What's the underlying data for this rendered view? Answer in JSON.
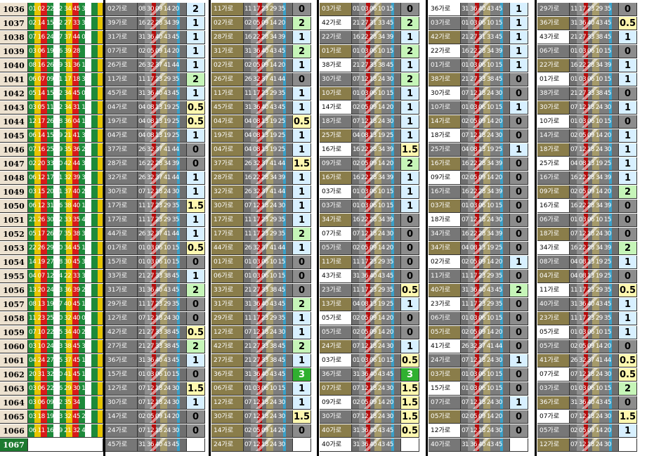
{
  "round_label_last": "1067",
  "rows": [
    {
      "round": "1036",
      "lead": "01 02 22 32 34 45 39",
      "groups": [
        [
          "02가로",
          "08 30 09 14 20",
          "2",
          "hi"
        ],
        [
          "11가로",
          "11 17 23 29 35",
          "0",
          "zero"
        ],
        [
          "03가로",
          "01 03 06 10 15",
          "0",
          "zero"
        ],
        [
          "36가로",
          "31 36 40 43 45",
          "1",
          "hi"
        ],
        [
          "29가로",
          "11 17 23 29 35",
          "0",
          "zero"
        ]
      ]
    },
    {
      "round": "1037",
      "lead": "02 14 15 22 27 33 31",
      "groups": [
        [
          "39가로",
          "16 22 28 34 39",
          "1",
          "hi"
        ],
        [
          "02가로",
          "02 05 09 14 20",
          "2",
          "two"
        ],
        [
          "42가로",
          "21 27 31 33 45",
          "2",
          "two"
        ],
        [
          "03가로",
          "01 03 06 10 15",
          "1",
          "hi"
        ],
        [
          "36가로",
          "31 36 40 43 45",
          "0.5",
          "half"
        ]
      ]
    },
    {
      "round": "1038",
      "lead": "07 16 24 27 37 44 02",
      "groups": [
        [
          "31가로",
          "31 36 40 43 45",
          "1",
          "hi"
        ],
        [
          "28가로",
          "16 22 28 34 39",
          "1",
          "hi"
        ],
        [
          "22가로",
          "16 22 28 34 39",
          "1",
          "hi"
        ],
        [
          "42가로",
          "21 27 31 33 45",
          "1",
          "hi"
        ],
        [
          "43가로",
          "21 27 33 38 45",
          "1",
          "hi"
        ]
      ]
    },
    {
      "round": "1039",
      "lead": "03 06 19 36 39 28",
      "groups": [
        [
          "07가로",
          "02 05 09 14 20",
          "1",
          "hi"
        ],
        [
          "31가로",
          "31 36 40 43 45",
          "2",
          "two"
        ],
        [
          "01가로",
          "01 03 06 10 15",
          "2",
          "two"
        ],
        [
          "22가로",
          "16 22 28 34 39",
          "1",
          "hi"
        ],
        [
          "06가로",
          "01 03 06 10 15",
          "0",
          "zero"
        ]
      ]
    },
    {
      "round": "1040",
      "lead": "08 16 26 29 31 36 11",
      "groups": [
        [
          "26가로",
          "26 32 37 41 44",
          "1",
          "hi"
        ],
        [
          "02가로",
          "02 05 09 14 20",
          "1",
          "hi"
        ],
        [
          "38가로",
          "21 27 33 38 45",
          "1",
          "hi"
        ],
        [
          "01가로",
          "01 03 06 10 15",
          "1",
          "hi"
        ],
        [
          "22가로",
          "16 22 28 34 39",
          "1",
          "hi"
        ]
      ]
    },
    {
      "round": "1041",
      "lead": "06 07 09 11 17 18 30",
      "groups": [
        [
          "11가로",
          "11 17 23 29 35",
          "2",
          "two"
        ],
        [
          "26가로",
          "26 32 37 41 44",
          "0",
          "zero"
        ],
        [
          "30가로",
          "07 12 18 24 30",
          "2",
          "two"
        ],
        [
          "38가로",
          "21 27 33 38 45",
          "0",
          "zero"
        ],
        [
          "01가로",
          "01 03 06 10 15",
          "1",
          "hi"
        ]
      ]
    },
    {
      "round": "1042",
      "lead": "05 14 15 22 34 45 04",
      "groups": [
        [
          "45가로",
          "31 36 40 43 45",
          "1",
          "hi"
        ],
        [
          "11가로",
          "11 17 23 29 35",
          "1",
          "hi"
        ],
        [
          "10가로",
          "01 03 06 10 15",
          "1",
          "hi"
        ],
        [
          "30가로",
          "07 12 18 24 30",
          "0",
          "zero"
        ],
        [
          "38가로",
          "21 27 33 38 45",
          "0",
          "zero"
        ]
      ]
    },
    {
      "round": "1043",
      "lead": "03 05 11 22 34 31 19",
      "groups": [
        [
          "04가로",
          "04 08 13 19 25",
          "0.5",
          "half"
        ],
        [
          "45가로",
          "31 36 40 43 45",
          "1",
          "hi"
        ],
        [
          "14가로",
          "02 05 09 14 20",
          "1",
          "hi"
        ],
        [
          "10가로",
          "01 03 06 10 15",
          "1",
          "hi"
        ],
        [
          "30가로",
          "07 12 18 24 30",
          "1",
          "hi"
        ]
      ]
    },
    {
      "round": "1044",
      "lead": "12 17 26 28 36 04 18",
      "groups": [
        [
          "19가로",
          "04 08 13 19 25",
          "0.5",
          "half"
        ],
        [
          "04가로",
          "04 08 13 19 25",
          "0.5",
          "half"
        ],
        [
          "18가로",
          "07 12 18 24 30",
          "1",
          "hi"
        ],
        [
          "14가로",
          "02 05 09 14 20",
          "0",
          "zero"
        ],
        [
          "10가로",
          "01 03 06 10 15",
          "0",
          "zero"
        ]
      ]
    },
    {
      "round": "1045",
      "lead": "06 14 15 19 21 41 37",
      "groups": [
        [
          "04가로",
          "04 08 13 19 25",
          "1",
          "hi"
        ],
        [
          "19가로",
          "04 08 13 19 25",
          "1",
          "hi"
        ],
        [
          "25가로",
          "04 08 13 19 25",
          "1",
          "hi"
        ],
        [
          "18가로",
          "07 12 18 24 30",
          "0",
          "zero"
        ],
        [
          "14가로",
          "02 05 09 14 20",
          "1",
          "hi"
        ]
      ]
    },
    {
      "round": "1046",
      "lead": "07 16 25 29 35 36 28",
      "groups": [
        [
          "37가로",
          "26 32 37 41 44",
          "0",
          "zero"
        ],
        [
          "04가로",
          "04 08 13 19 25",
          "1",
          "hi"
        ],
        [
          "16가로",
          "16 22 28 34 39",
          "1.5",
          "half"
        ],
        [
          "25가로",
          "04 08 13 19 25",
          "1",
          "hi"
        ],
        [
          "18가로",
          "07 12 18 24 30",
          "1",
          "hi"
        ]
      ]
    },
    {
      "round": "1047",
      "lead": "02 20 33 40 42 44 32",
      "groups": [
        [
          "28가로",
          "16 22 28 34 39",
          "0",
          "zero"
        ],
        [
          "37가로",
          "26 32 37 41 44",
          "1.5",
          "half"
        ],
        [
          "09가로",
          "02 05 09 14 20",
          "2",
          "two"
        ],
        [
          "16가로",
          "16 22 28 34 39",
          "0",
          "zero"
        ],
        [
          "25가로",
          "04 08 13 19 25",
          "1",
          "hi"
        ]
      ]
    },
    {
      "round": "1048",
      "lead": "06 12 17 21 32 39 30",
      "groups": [
        [
          "32가로",
          "26 32 37 41 44",
          "1",
          "hi"
        ],
        [
          "28가로",
          "16 22 28 34 39",
          "1",
          "hi"
        ],
        [
          "16가로",
          "16 22 28 34 39",
          "1",
          "hi"
        ],
        [
          "09가로",
          "02 05 09 14 20",
          "0",
          "zero"
        ],
        [
          "16가로",
          "16 22 28 34 39",
          "1",
          "hi"
        ]
      ]
    },
    {
      "round": "1049",
      "lead": "03 15 20 21 37 40 27",
      "groups": [
        [
          "30가로",
          "07 12 18 24 30",
          "1",
          "hi"
        ],
        [
          "32가로",
          "26 32 37 41 44",
          "1",
          "hi"
        ],
        [
          "03가로",
          "01 03 06 10 15",
          "1",
          "hi"
        ],
        [
          "16가로",
          "16 22 28 34 39",
          "0",
          "zero"
        ],
        [
          "09가로",
          "02 05 09 14 20",
          "2",
          "two"
        ]
      ]
    },
    {
      "round": "1050",
      "lead": "06 12 31 36 38 40 17",
      "groups": [
        [
          "17가로",
          "11 17 23 29 35",
          "1.5",
          "half"
        ],
        [
          "30가로",
          "07 12 18 24 30",
          "1",
          "hi"
        ],
        [
          "03가로",
          "01 03 06 10 15",
          "1",
          "hi"
        ],
        [
          "03가로",
          "01 03 06 10 15",
          "0",
          "zero"
        ],
        [
          "16가로",
          "16 22 28 34 39",
          "0",
          "zero"
        ]
      ]
    },
    {
      "round": "1051",
      "lead": "21 26 30 32 33 35 44",
      "groups": [
        [
          "17가로",
          "11 17 23 29 35",
          "1",
          "hi"
        ],
        [
          "17가로",
          "11 17 23 29 35",
          "1",
          "hi"
        ],
        [
          "34가로",
          "16 22 28 34 39",
          "0",
          "zero"
        ],
        [
          "18가로",
          "07 12 18 24 30",
          "0",
          "zero"
        ],
        [
          "06가로",
          "01 03 06 10 15",
          "0",
          "zero"
        ]
      ]
    },
    {
      "round": "1052",
      "lead": "05 17 26 27 35 38 31",
      "groups": [
        [
          "44가로",
          "26 32 37 41 44",
          "1",
          "hi"
        ],
        [
          "17가로",
          "11 17 23 29 35",
          "2",
          "two"
        ],
        [
          "07가로",
          "07 12 18 24 30",
          "0",
          "zero"
        ],
        [
          "34가로",
          "16 22 28 34 39",
          "0",
          "zero"
        ],
        [
          "18가로",
          "07 12 18 24 30",
          "0",
          "zero"
        ]
      ]
    },
    {
      "round": "1053",
      "lead": "22 26 29 30 34 45 15",
      "groups": [
        [
          "01가로",
          "01 03 06 10 15",
          "0.5",
          "half"
        ],
        [
          "44가로",
          "26 32 37 41 44",
          "1",
          "hi"
        ],
        [
          "05가로",
          "02 05 09 14 20",
          "0",
          "zero"
        ],
        [
          "34가로",
          "04 08 13 19 25",
          "0",
          "zero"
        ],
        [
          "34가로",
          "16 22 28 34 39",
          "2",
          "two"
        ]
      ]
    },
    {
      "round": "1054",
      "lead": "14 19 27 28 30 45 33",
      "groups": [
        [
          "15가로",
          "01 03 06 10 15",
          "0",
          "zero"
        ],
        [
          "01가로",
          "01 03 06 10 15",
          "0",
          "zero"
        ],
        [
          "11가로",
          "11 17 23 29 35",
          "0",
          "zero"
        ],
        [
          "02가로",
          "02 05 09 14 20",
          "1",
          "hi"
        ],
        [
          "08가로",
          "04 08 13 19 25",
          "1",
          "hi"
        ]
      ]
    },
    {
      "round": "1955",
      "lead": "04 07 12 14 22 33 31",
      "groups": [
        [
          "33가로",
          "21 27 33 38 45",
          "1",
          "hi"
        ],
        [
          "06가로",
          "01 03 06 10 15",
          "0",
          "zero"
        ],
        [
          "43가로",
          "31 36 40 43 45",
          "0",
          "zero"
        ],
        [
          "11가로",
          "11 17 23 29 35",
          "0",
          "zero"
        ],
        [
          "04가로",
          "04 08 13 19 25",
          "0",
          "zero"
        ]
      ]
    },
    {
      "round": "1056",
      "lead": "13 20 24 33 36 39 29",
      "groups": [
        [
          "31가로",
          "31 36 40 43 45",
          "2",
          "two"
        ],
        [
          "33가로",
          "21 27 33 38 45",
          "0",
          "zero"
        ],
        [
          "23가로",
          "11 17 23 29 35",
          "0.5",
          "half"
        ],
        [
          "40가로",
          "31 36 40 43 45",
          "2",
          "two"
        ],
        [
          "11가로",
          "11 17 23 29 35",
          "0.5",
          "half"
        ]
      ]
    },
    {
      "round": "1057",
      "lead": "08 13 19 27 40 45 18",
      "groups": [
        [
          "29가로",
          "11 17 23 29 35",
          "0",
          "zero"
        ],
        [
          "31가로",
          "31 36 40 43 45",
          "2",
          "two"
        ],
        [
          "13가로",
          "04 08 13 19 25",
          "1",
          "hi"
        ],
        [
          "23가로",
          "11 17 23 29 35",
          "0",
          "zero"
        ],
        [
          "40가로",
          "31 36 40 43 45",
          "1",
          "hi"
        ]
      ]
    },
    {
      "round": "1058",
      "lead": "11 23 25 30 32 40 05",
      "groups": [
        [
          "12가로",
          "07 12 18 24 30",
          "0",
          "zero"
        ],
        [
          "29가로",
          "11 17 23 29 35",
          "1",
          "hi"
        ],
        [
          "05가로",
          "02 05 09 14 20",
          "0",
          "zero"
        ],
        [
          "06가로",
          "01 03 06 10 15",
          "0",
          "zero"
        ],
        [
          "23가로",
          "11 17 23 29 35",
          "1",
          "hi"
        ]
      ]
    },
    {
      "round": "1059",
      "lead": "07 10 22 25 34 40 27",
      "groups": [
        [
          "42가로",
          "21 27 33 38 45",
          "0.5",
          "half"
        ],
        [
          "12가로",
          "07 12 18 24 30",
          "1",
          "hi"
        ],
        [
          "05가로",
          "02 05 09 14 20",
          "0",
          "zero"
        ],
        [
          "05가로",
          "02 05 09 14 20",
          "0",
          "zero"
        ],
        [
          "05가로",
          "01 03 06 10 15",
          "1",
          "hi"
        ]
      ]
    },
    {
      "round": "1060",
      "lead": "03 10 24 33 38 45 36",
      "groups": [
        [
          "27가로",
          "21 27 33 38 45",
          "2",
          "two"
        ],
        [
          "42가로",
          "21 27 33 38 45",
          "2",
          "two"
        ],
        [
          "24가로",
          "07 12 18 24 30",
          "1",
          "hi"
        ],
        [
          "41가로",
          "26 32 37 41 44",
          "0",
          "zero"
        ],
        [
          "05가로",
          "02 05 09 14 20",
          "0",
          "zero"
        ]
      ]
    },
    {
      "round": "1061",
      "lead": "04 24 27 35 37 45 15",
      "groups": [
        [
          "36가로",
          "31 36 40 43 45",
          "1",
          "hi"
        ],
        [
          "27가로",
          "21 27 33 38 45",
          "1",
          "hi"
        ],
        [
          "03가로",
          "01 03 06 10 15",
          "0.5",
          "half"
        ],
        [
          "24가로",
          "07 12 18 24 30",
          "1",
          "hi"
        ],
        [
          "41가로",
          "26 32 37 41 44",
          "0.5",
          "half"
        ]
      ]
    },
    {
      "round": "1062",
      "lead": "20 31 32 40 41 45 12",
      "groups": [
        [
          "15가로",
          "01 03 06 10 15",
          "0",
          "zero"
        ],
        [
          "36가로",
          "31 36 40 43 45",
          "3",
          "three"
        ],
        [
          "36가로",
          "31 36 40 43 45",
          "3",
          "three"
        ],
        [
          "03가로",
          "01 03 06 10 15",
          "0",
          "zero"
        ],
        [
          "07가로",
          "07 12 18 24 30",
          "0.5",
          "half"
        ]
      ]
    },
    {
      "round": "1063",
      "lead": "03 06 22 26 29 30 18",
      "groups": [
        [
          "12가로",
          "07 12 18 24 30",
          "1.5",
          "half"
        ],
        [
          "06가로",
          "01 03 06 10 15",
          "1",
          "hi"
        ],
        [
          "07가로",
          "07 12 18 24 30",
          "1.5",
          "half"
        ],
        [
          "15가로",
          "01 03 06 10 15",
          "0",
          "zero"
        ],
        [
          "03가로",
          "01 03 06 10 15",
          "2",
          "two"
        ]
      ]
    },
    {
      "round": "1064",
      "lead": "03 06 09 22 35 34",
      "groups": [
        [
          "30가로",
          "07 12 18 24 30",
          "1",
          "hi"
        ],
        [
          "12가로",
          "07 12 18 24 30",
          "1",
          "hi"
        ],
        [
          "09가로",
          "02 05 09 14 20",
          "1.5",
          "half"
        ],
        [
          "07가로",
          "07 12 18 24 30",
          "1",
          "hi"
        ],
        [
          "36가로",
          "31 36 40 43 45",
          "0",
          "zero"
        ]
      ]
    },
    {
      "round": "1065",
      "lead": "03 18 19 23 32 45 24",
      "groups": [
        [
          "14가로",
          "02 05 09 14 20",
          "0",
          "zero"
        ],
        [
          "30가로",
          "07 12 18 24 30",
          "1.5",
          "half"
        ],
        [
          "30가로",
          "07 12 18 24 30",
          "1.5",
          "half"
        ],
        [
          "05가로",
          "02 05 09 14 20",
          "0",
          "zero"
        ],
        [
          "07가로",
          "07 12 18 24 30",
          "1.5",
          "half"
        ]
      ]
    },
    {
      "round": "1066",
      "lead": "06 11 16 19 21 32 45",
      "groups": [
        [
          "24가로",
          "07 12 18 24 30",
          "0",
          "zero"
        ],
        [
          "14가로",
          "02 05 09 14 20",
          "0",
          "zero"
        ],
        [
          "40가로",
          "31 36 40 43 45",
          "0.5",
          "half"
        ],
        [
          "12가로",
          "07 12 18 24 30",
          "0",
          "zero"
        ],
        [
          "05가로",
          "02 05 09 14 20",
          "1",
          "hi"
        ]
      ]
    },
    {
      "round": "1067",
      "lead": "",
      "groups": [
        [
          "45가로",
          "31 36 40 43 45",
          "",
          ""
        ],
        [
          "24가로",
          "07 12 18 24 30",
          "",
          ""
        ],
        [
          "40가로",
          "31 36 40 43 45",
          "",
          ""
        ],
        [
          "40가로",
          "31 36 40 43 45",
          "",
          ""
        ],
        [
          "12가로",
          "07 12 18 24 30",
          "",
          ""
        ]
      ]
    }
  ]
}
